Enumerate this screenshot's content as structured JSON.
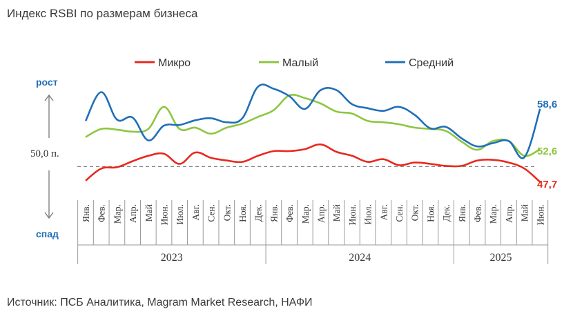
{
  "title": "Индекс RSBI по размерам бизнеса",
  "source": "Источник: ПСБ Аналитика, Magram Market Research, НАФИ",
  "chart_data": {
    "type": "line",
    "categories": [
      "Янв.",
      "Фев.",
      "Мар.",
      "Апр.",
      "Май",
      "Июн.",
      "Июл.",
      "Авг.",
      "Сен.",
      "Окт.",
      "Ноя.",
      "Дек.",
      "Янв.",
      "Фев.",
      "Мар.",
      "Апр.",
      "Май",
      "Июн.",
      "Июл.",
      "Авг.",
      "Сен.",
      "Окт.",
      "Ноя.",
      "Дек.",
      "Янв.",
      "Фев.",
      "Мар.",
      "Апр.",
      "Май",
      "Июн."
    ],
    "years": [
      {
        "label": "2023",
        "start": 0,
        "end": 11
      },
      {
        "label": "2024",
        "start": 12,
        "end": 23
      },
      {
        "label": "2025",
        "start": 24,
        "end": 29
      }
    ],
    "series": [
      {
        "name": "Микро",
        "color": "#e8281e",
        "values": [
          47.9,
          49.7,
          49.9,
          50.8,
          51.6,
          51.9,
          50.4,
          52.1,
          51.3,
          50.9,
          50.7,
          51.6,
          52.3,
          52.3,
          52.6,
          53.3,
          52.2,
          51.6,
          50.7,
          51.1,
          50.2,
          50.6,
          50.4,
          50.1,
          50.1,
          50.9,
          51.0,
          50.6,
          49.7,
          47.7
        ]
      },
      {
        "name": "Малый",
        "color": "#8cc63f",
        "values": [
          54.4,
          55.6,
          55.5,
          55.2,
          55.6,
          58.9,
          55.6,
          55.8,
          54.9,
          55.8,
          56.4,
          57.4,
          58.4,
          60.6,
          60.2,
          59.4,
          58.2,
          57.9,
          56.8,
          56.6,
          56.3,
          55.8,
          55.6,
          55.3,
          53.7,
          52.5,
          53.8,
          53.8,
          51.6,
          52.6
        ]
      },
      {
        "name": "Средний",
        "color": "#1f6fb7",
        "values": [
          56.8,
          61.1,
          57.0,
          57.3,
          53.9,
          56.1,
          56.2,
          56.9,
          57.2,
          56.6,
          57.2,
          61.9,
          61.6,
          60.5,
          58.6,
          61.4,
          61.4,
          59.3,
          58.7,
          58.3,
          58.9,
          57.7,
          55.7,
          55.9,
          54.2,
          53.0,
          53.5,
          53.8,
          51.4,
          58.6
        ]
      }
    ],
    "reference_line": {
      "value": 50.0,
      "label": "50,0 п."
    },
    "end_labels": [
      "47,7",
      "52,6",
      "58,6"
    ],
    "up_label": "рост",
    "down_label": "спад",
    "ylim": [
      45,
      63
    ],
    "legend_position": "top"
  }
}
